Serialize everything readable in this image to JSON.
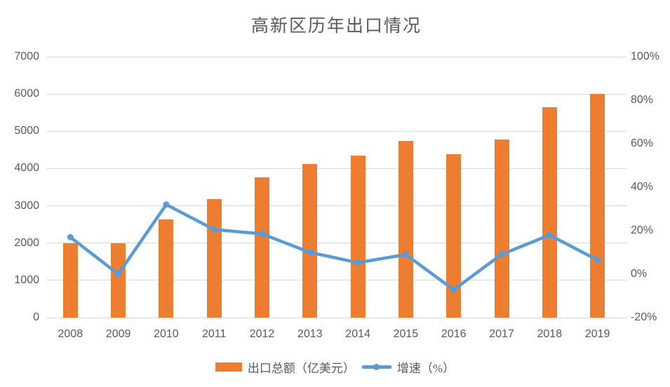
{
  "title": "高新区历年出口情况",
  "legend": {
    "bar_label": "出口总额（亿美元）",
    "line_label": "增速（%）"
  },
  "colors": {
    "bar": "#ed7d31",
    "line": "#5b9bd5",
    "gridline": "#d9d9d9",
    "text": "#595959",
    "background": "#ffffff"
  },
  "chart_data": {
    "type": "bar",
    "subtype": "combo-bar-line-dual-axis",
    "title": "高新区历年出口情况",
    "categories": [
      "2008",
      "2009",
      "2010",
      "2011",
      "2012",
      "2013",
      "2014",
      "2015",
      "2016",
      "2017",
      "2018",
      "2019"
    ],
    "series": [
      {
        "name": "出口总额（亿美元）",
        "type": "bar",
        "axis": "left",
        "color": "#ed7d31",
        "values": [
          2000,
          2000,
          2640,
          3180,
          3760,
          4130,
          4350,
          4750,
          4380,
          4780,
          5640,
          6000
        ]
      },
      {
        "name": "增速（%）",
        "type": "line",
        "axis": "right",
        "color": "#5b9bd5",
        "marker": "circle",
        "values": [
          17,
          0,
          32,
          20.5,
          18.5,
          10,
          5.3,
          9,
          -7.2,
          9.1,
          18,
          6.5
        ]
      }
    ],
    "left_axis": {
      "min": 0,
      "max": 7000,
      "step": 1000,
      "tick_labels": [
        "0",
        "1000",
        "2000",
        "3000",
        "4000",
        "5000",
        "6000",
        "7000"
      ]
    },
    "right_axis": {
      "min": -20,
      "max": 100,
      "step": 20,
      "tick_labels": [
        "-20%",
        "0%",
        "20%",
        "40%",
        "60%",
        "80%",
        "100%"
      ]
    },
    "grid": true,
    "legend_position": "bottom",
    "xlabel": "",
    "ylabel": ""
  }
}
